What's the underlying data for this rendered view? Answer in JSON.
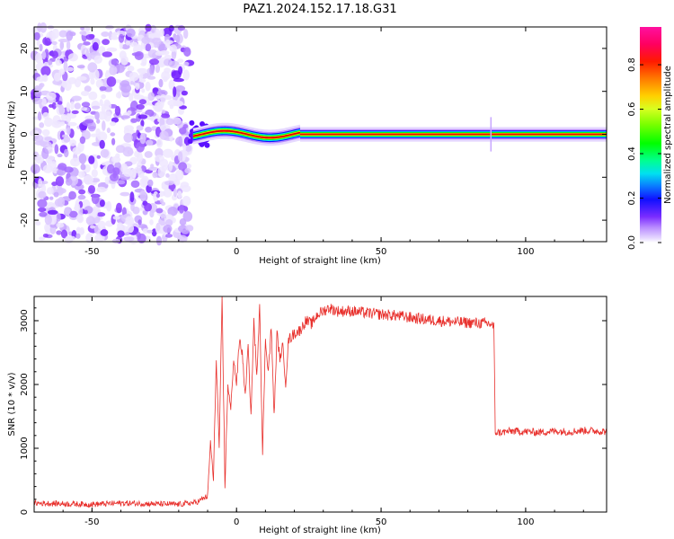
{
  "figure": {
    "title": "PAZ1.2024.152.17.18.G31"
  },
  "chart_data": [
    {
      "type": "heatmap",
      "title": "",
      "xlabel": "Height of straight line (km)",
      "ylabel": "Frequency (Hz)",
      "xlim": [
        -70,
        128
      ],
      "ylim": [
        -25,
        25
      ],
      "xticks": [
        -50,
        0,
        50,
        100
      ],
      "yticks": [
        -20,
        -10,
        0,
        10,
        20
      ],
      "grid": false,
      "colorbar": {
        "label": "Normalized spectral amplitude",
        "range": [
          0,
          0.97
        ],
        "ticks": [
          "0.0",
          "0.2",
          "0.4",
          "0.6",
          "0.8"
        ],
        "tick_values": [
          0,
          0.2,
          0.4,
          0.6,
          0.8
        ],
        "colormap": "gist_ncar-like"
      },
      "regions": [
        {
          "name": "noise",
          "x_range": [
            -70,
            -15
          ],
          "freq_range": [
            -25,
            25
          ],
          "amplitude": 0.15
        },
        {
          "name": "transition",
          "x_range": [
            -15,
            22
          ],
          "freq_center": 1,
          "amplitude": 0.95
        },
        {
          "name": "carrier",
          "x_range": [
            22,
            128
          ],
          "freq_center": 0,
          "amplitude": 0.95
        }
      ]
    },
    {
      "type": "line",
      "title": "",
      "xlabel": "Height of straight line (km)",
      "ylabel": "SNR (10 * v/v)",
      "xlim": [
        -70,
        128
      ],
      "ylim": [
        0,
        3380
      ],
      "xticks": [
        -50,
        0,
        50,
        100
      ],
      "yticks": [
        0,
        1000,
        2000,
        3000
      ],
      "grid": false,
      "series": [
        {
          "color": "#e8302c",
          "x": [
            -70,
            -60,
            -50,
            -40,
            -30,
            -20,
            -14,
            -10,
            -9,
            -8,
            -7,
            -6,
            -5,
            -4,
            -3,
            -2,
            -1,
            0,
            1,
            2,
            3,
            4,
            5,
            6,
            7,
            8,
            9,
            10,
            11,
            12,
            13,
            14,
            15,
            16,
            17,
            18,
            20,
            22,
            24,
            26,
            28,
            30,
            32,
            35,
            40,
            45,
            50,
            55,
            60,
            65,
            70,
            75,
            80,
            85,
            88,
            89,
            89.5,
            92,
            95,
            100,
            105,
            110,
            115,
            120,
            125,
            128
          ],
          "y": [
            140,
            130,
            120,
            140,
            130,
            120,
            150,
            250,
            1100,
            500,
            2400,
            1000,
            3300,
            400,
            2000,
            1600,
            2400,
            2000,
            2700,
            2500,
            1800,
            2600,
            1500,
            3000,
            2100,
            3300,
            900,
            2700,
            2200,
            2900,
            1500,
            2800,
            2400,
            2600,
            2000,
            2700,
            2800,
            2850,
            3000,
            2950,
            3100,
            3150,
            3200,
            3150,
            3150,
            3120,
            3100,
            3080,
            3050,
            3020,
            3000,
            2980,
            2970,
            2960,
            2950,
            2900,
            1250,
            1250,
            1270,
            1260,
            1250,
            1270,
            1260,
            1280,
            1270,
            1260
          ]
        }
      ]
    }
  ]
}
